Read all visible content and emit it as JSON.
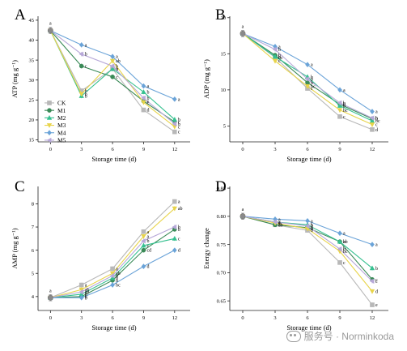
{
  "colors": {
    "CK": "#b8b8b8",
    "M1": "#3a8a57",
    "M2": "#35c08f",
    "M3": "#e8d44a",
    "M4": "#6aa3d8",
    "M5": "#b7a8d8",
    "axis": "#222222",
    "origin_point": "#8a8a8a"
  },
  "watermark": {
    "text": "服务号 · Norminkoda"
  },
  "chart_data": [
    {
      "id": "A",
      "panel_letter": "A",
      "type": "line",
      "xlabel": "Storage time (d)",
      "ylabel": "ATP (mg g⁻¹)",
      "x": [
        0,
        3,
        6,
        9,
        12
      ],
      "xticks": [
        "0",
        "3",
        "6",
        "9",
        "12"
      ],
      "xlim": [
        -1.2,
        13.5
      ],
      "ylim": [
        14.5,
        46
      ],
      "yticks": [
        15,
        20,
        25,
        30,
        35,
        40,
        45
      ],
      "legend": {
        "position": "bottom-left",
        "entries": [
          "CK",
          "M1",
          "M2",
          "M3",
          "M4",
          "M5"
        ]
      },
      "series": [
        {
          "name": "CK",
          "values": [
            42.4,
            27.3,
            32.8,
            22.5,
            17.0
          ],
          "letters": [
            "a",
            "b",
            "b",
            "d",
            "c"
          ]
        },
        {
          "name": "M1",
          "values": [
            42.4,
            33.5,
            30.8,
            24.7,
            19.5
          ],
          "letters": [
            "a",
            "c",
            "c",
            "c",
            "c"
          ]
        },
        {
          "name": "M2",
          "values": [
            42.4,
            26.0,
            32.8,
            27.0,
            20.1
          ],
          "letters": [
            "a",
            "b",
            "b",
            "b",
            "b"
          ]
        },
        {
          "name": "M3",
          "values": [
            42.4,
            26.5,
            34.8,
            24.4,
            18.3
          ],
          "letters": [
            "a",
            "b",
            "ab",
            "c",
            "c"
          ]
        },
        {
          "name": "M4",
          "values": [
            42.4,
            38.8,
            35.9,
            28.5,
            25.2
          ],
          "letters": [
            "a",
            "a",
            "a",
            "a",
            "a"
          ]
        },
        {
          "name": "M5",
          "values": [
            42.4,
            36.5,
            33.5,
            25.5,
            19.0
          ],
          "letters": [
            "a",
            "b",
            "b",
            "b",
            "b"
          ]
        }
      ]
    },
    {
      "id": "B",
      "panel_letter": "B",
      "type": "line",
      "xlabel": "Storage time (d)",
      "ylabel": "ADP (mg g⁻¹)",
      "x": [
        0,
        3,
        6,
        9,
        12
      ],
      "xticks": [
        "0",
        "3",
        "6",
        "9",
        "12"
      ],
      "xlim": [
        -1.2,
        13.5
      ],
      "ylim": [
        2.8,
        20.2
      ],
      "yticks": [
        5,
        10,
        15,
        20
      ],
      "series": [
        {
          "name": "CK",
          "values": [
            17.8,
            14.5,
            10.2,
            6.3,
            4.5
          ],
          "letters": [
            "a",
            "bc",
            "c",
            "c",
            "d"
          ]
        },
        {
          "name": "M1",
          "values": [
            17.8,
            14.8,
            11.0,
            8.0,
            6.0
          ],
          "letters": [
            "a",
            "b",
            "b",
            "b",
            "b"
          ]
        },
        {
          "name": "M2",
          "values": [
            17.8,
            14.6,
            11.8,
            7.8,
            5.7
          ],
          "letters": [
            "a",
            "b",
            "b",
            "b",
            "bc"
          ]
        },
        {
          "name": "M3",
          "values": [
            17.8,
            14.0,
            10.5,
            7.2,
            5.2
          ],
          "letters": [
            "a",
            "c",
            "bc",
            "bc",
            "c"
          ]
        },
        {
          "name": "M4",
          "values": [
            17.8,
            16.0,
            13.5,
            10.0,
            7.0
          ],
          "letters": [
            "a",
            "a",
            "a",
            "a",
            "a"
          ]
        },
        {
          "name": "M5",
          "values": [
            17.8,
            15.6,
            11.5,
            8.2,
            6.1
          ],
          "letters": [
            "a",
            "b",
            "b",
            "b",
            "b"
          ]
        }
      ]
    },
    {
      "id": "C",
      "panel_letter": "C",
      "type": "line",
      "xlabel": "Storage time (d)",
      "ylabel": "AMP (mg g⁻¹)",
      "x": [
        0,
        3,
        6,
        9,
        12
      ],
      "xticks": [
        "0",
        "3",
        "6",
        "9",
        "12"
      ],
      "xlim": [
        -1.2,
        13.5
      ],
      "ylim": [
        3.4,
        8.75
      ],
      "yticks": [
        4,
        5,
        6,
        7,
        8
      ],
      "series": [
        {
          "name": "CK",
          "values": [
            3.95,
            4.5,
            5.2,
            6.8,
            8.1
          ],
          "letters": [
            "a",
            "a",
            "a",
            "a",
            "a"
          ]
        },
        {
          "name": "M1",
          "values": [
            3.95,
            4.0,
            4.7,
            6.0,
            6.9
          ],
          "letters": [
            "a",
            "b",
            "b",
            "cd",
            "b"
          ]
        },
        {
          "name": "M2",
          "values": [
            3.95,
            4.1,
            4.8,
            6.2,
            6.5
          ],
          "letters": [
            "a",
            "b",
            "b",
            "c",
            "c"
          ]
        },
        {
          "name": "M3",
          "values": [
            3.95,
            4.3,
            5.0,
            6.6,
            7.8
          ],
          "letters": [
            "a",
            "ab",
            "ab",
            "a",
            "ab"
          ]
        },
        {
          "name": "M4",
          "values": [
            3.95,
            3.95,
            4.5,
            5.3,
            6.0
          ],
          "letters": [
            "a",
            "b",
            "bc",
            "d",
            "d"
          ]
        },
        {
          "name": "M5",
          "values": [
            3.95,
            4.2,
            4.9,
            6.4,
            7.0
          ],
          "letters": [
            "a",
            "ab",
            "b",
            "b",
            "b"
          ]
        }
      ]
    },
    {
      "id": "D",
      "panel_letter": "D",
      "type": "line",
      "xlabel": "Storage time (d)",
      "ylabel": "Energy change",
      "x": [
        0,
        3,
        6,
        9,
        12
      ],
      "xticks": [
        "0",
        "3",
        "6",
        "9",
        "12"
      ],
      "xlim": [
        -1.2,
        13.5
      ],
      "ylim": [
        0.633,
        0.853
      ],
      "yticks": [
        0.65,
        0.7,
        0.75,
        0.8,
        0.85
      ],
      "yticklabels": [
        "0.65",
        "0.70",
        "0.75",
        "0.80",
        "0.85"
      ],
      "series": [
        {
          "name": "CK",
          "values": [
            0.8,
            0.785,
            0.775,
            0.718,
            0.643
          ],
          "letters": [
            "a",
            "a",
            "b",
            "c",
            "e"
          ]
        },
        {
          "name": "M1",
          "values": [
            0.8,
            0.785,
            0.78,
            0.755,
            0.688
          ],
          "letters": [
            "a",
            "ab",
            "b",
            "b",
            "c"
          ]
        },
        {
          "name": "M2",
          "values": [
            0.8,
            0.79,
            0.785,
            0.755,
            0.708
          ],
          "letters": [
            "a",
            "a",
            "b",
            "ab",
            "b"
          ]
        },
        {
          "name": "M3",
          "values": [
            0.8,
            0.788,
            0.778,
            0.738,
            0.667
          ],
          "letters": [
            "a",
            "a",
            "b",
            "bc",
            "d"
          ]
        },
        {
          "name": "M4",
          "values": [
            0.8,
            0.795,
            0.792,
            0.77,
            0.75
          ],
          "letters": [
            "a",
            "a",
            "a",
            "a",
            "a"
          ]
        },
        {
          "name": "M5",
          "values": [
            0.8,
            0.79,
            0.783,
            0.742,
            0.685
          ],
          "letters": [
            "a",
            "a",
            "b",
            "b",
            "c"
          ]
        }
      ]
    }
  ]
}
